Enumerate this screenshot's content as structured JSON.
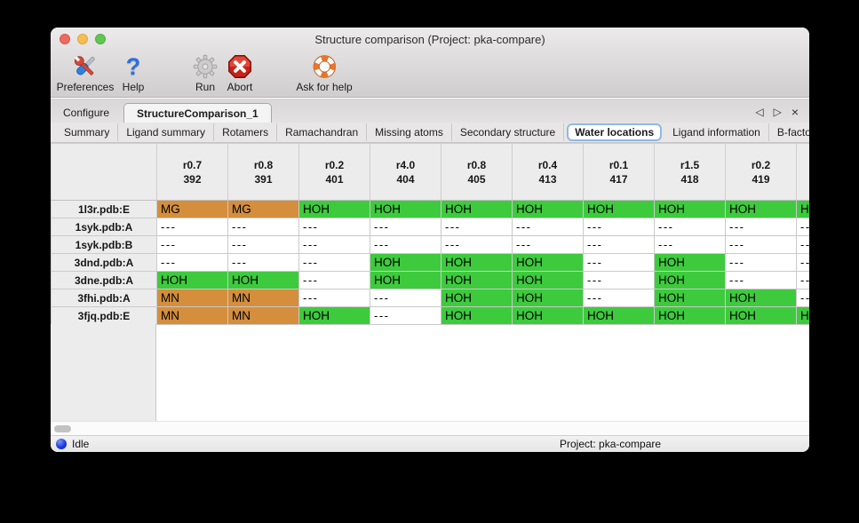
{
  "window": {
    "title": "Structure comparison (Project: pka-compare)"
  },
  "toolbar": {
    "preferences_label": "Preferences",
    "help_label": "Help",
    "run_label": "Run",
    "abort_label": "Abort",
    "ask_for_help_label": "Ask for help",
    "help_glyph": "?"
  },
  "tabs": {
    "configure_label": "Configure",
    "structure_comparison_label": "StructureComparison_1",
    "active": "StructureComparison_1"
  },
  "pane_controls": {
    "prev": "◁",
    "next": "▷",
    "close": "×"
  },
  "subtabs": {
    "items": [
      "Summary",
      "Ligand summary",
      "Rotamers",
      "Ramachandran",
      "Missing atoms",
      "Secondary structure",
      "Water locations",
      "Ligand information",
      "B-factors"
    ],
    "selected": "Water locations",
    "prev": "◁",
    "next": "▷"
  },
  "colors": {
    "green": "#3dcb3d",
    "orange": "#d48e3c"
  },
  "chart_data": {
    "type": "table",
    "title": "Water locations",
    "columns": [
      {
        "top": "r0.7",
        "bottom": "392"
      },
      {
        "top": "r0.8",
        "bottom": "391"
      },
      {
        "top": "r0.2",
        "bottom": "401"
      },
      {
        "top": "r4.0",
        "bottom": "404"
      },
      {
        "top": "r0.8",
        "bottom": "405"
      },
      {
        "top": "r0.4",
        "bottom": "413"
      },
      {
        "top": "r0.1",
        "bottom": "417"
      },
      {
        "top": "r1.5",
        "bottom": "418"
      },
      {
        "top": "r0.2",
        "bottom": "419"
      },
      {
        "top": "",
        "bottom": ""
      }
    ],
    "rows": [
      {
        "name": "1l3r.pdb:E",
        "cells": [
          {
            "v": "MG",
            "c": "orange"
          },
          {
            "v": "MG",
            "c": "orange"
          },
          {
            "v": "HOH",
            "c": "green"
          },
          {
            "v": "HOH",
            "c": "green"
          },
          {
            "v": "HOH",
            "c": "green"
          },
          {
            "v": "HOH",
            "c": "green"
          },
          {
            "v": "HOH",
            "c": "green"
          },
          {
            "v": "HOH",
            "c": "green"
          },
          {
            "v": "HOH",
            "c": "green"
          },
          {
            "v": "HOH",
            "c": "green"
          }
        ]
      },
      {
        "name": "1syk.pdb:A",
        "cells": [
          {
            "v": "---",
            "c": "none"
          },
          {
            "v": "---",
            "c": "none"
          },
          {
            "v": "---",
            "c": "none"
          },
          {
            "v": "---",
            "c": "none"
          },
          {
            "v": "---",
            "c": "none"
          },
          {
            "v": "---",
            "c": "none"
          },
          {
            "v": "---",
            "c": "none"
          },
          {
            "v": "---",
            "c": "none"
          },
          {
            "v": "---",
            "c": "none"
          },
          {
            "v": "---",
            "c": "none"
          }
        ]
      },
      {
        "name": "1syk.pdb:B",
        "cells": [
          {
            "v": "---",
            "c": "none"
          },
          {
            "v": "---",
            "c": "none"
          },
          {
            "v": "---",
            "c": "none"
          },
          {
            "v": "---",
            "c": "none"
          },
          {
            "v": "---",
            "c": "none"
          },
          {
            "v": "---",
            "c": "none"
          },
          {
            "v": "---",
            "c": "none"
          },
          {
            "v": "---",
            "c": "none"
          },
          {
            "v": "---",
            "c": "none"
          },
          {
            "v": "---",
            "c": "none"
          }
        ]
      },
      {
        "name": "3dnd.pdb:A",
        "cells": [
          {
            "v": "---",
            "c": "none"
          },
          {
            "v": "---",
            "c": "none"
          },
          {
            "v": "---",
            "c": "none"
          },
          {
            "v": "HOH",
            "c": "green"
          },
          {
            "v": "HOH",
            "c": "green"
          },
          {
            "v": "HOH",
            "c": "green"
          },
          {
            "v": "---",
            "c": "none"
          },
          {
            "v": "HOH",
            "c": "green"
          },
          {
            "v": "---",
            "c": "none"
          },
          {
            "v": "---",
            "c": "none"
          }
        ]
      },
      {
        "name": "3dne.pdb:A",
        "cells": [
          {
            "v": "HOH",
            "c": "green"
          },
          {
            "v": "HOH",
            "c": "green"
          },
          {
            "v": "---",
            "c": "none"
          },
          {
            "v": "HOH",
            "c": "green"
          },
          {
            "v": "HOH",
            "c": "green"
          },
          {
            "v": "HOH",
            "c": "green"
          },
          {
            "v": "---",
            "c": "none"
          },
          {
            "v": "HOH",
            "c": "green"
          },
          {
            "v": "---",
            "c": "none"
          },
          {
            "v": "---",
            "c": "none"
          }
        ]
      },
      {
        "name": "3fhi.pdb:A",
        "cells": [
          {
            "v": "MN",
            "c": "orange"
          },
          {
            "v": "MN",
            "c": "orange"
          },
          {
            "v": "---",
            "c": "none"
          },
          {
            "v": "---",
            "c": "none"
          },
          {
            "v": "HOH",
            "c": "green"
          },
          {
            "v": "HOH",
            "c": "green"
          },
          {
            "v": "---",
            "c": "none"
          },
          {
            "v": "HOH",
            "c": "green"
          },
          {
            "v": "HOH",
            "c": "green"
          },
          {
            "v": "---",
            "c": "none"
          }
        ]
      },
      {
        "name": "3fjq.pdb:E",
        "cells": [
          {
            "v": "MN",
            "c": "orange"
          },
          {
            "v": "MN",
            "c": "orange"
          },
          {
            "v": "HOH",
            "c": "green"
          },
          {
            "v": "---",
            "c": "none"
          },
          {
            "v": "HOH",
            "c": "green"
          },
          {
            "v": "HOH",
            "c": "green"
          },
          {
            "v": "HOH",
            "c": "green"
          },
          {
            "v": "HOH",
            "c": "green"
          },
          {
            "v": "HOH",
            "c": "green"
          },
          {
            "v": "HOH",
            "c": "green"
          }
        ]
      }
    ]
  },
  "status": {
    "label": "Idle",
    "project": "Project: pka-compare"
  }
}
